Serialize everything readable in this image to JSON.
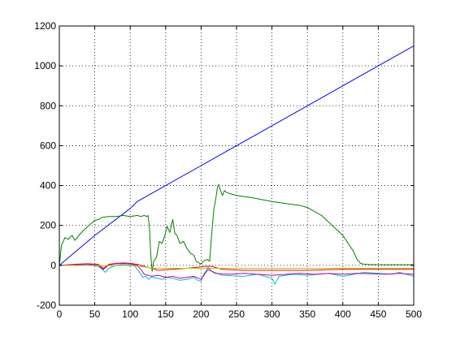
{
  "chart_data": {
    "type": "line",
    "title": "",
    "xlabel": "",
    "ylabel": "",
    "xlim": [
      0,
      500
    ],
    "ylim": [
      -200,
      1200
    ],
    "xticks": [
      0,
      50,
      100,
      150,
      200,
      250,
      300,
      350,
      400,
      450,
      500
    ],
    "yticks": [
      -200,
      0,
      200,
      400,
      600,
      800,
      1000,
      1200
    ],
    "xtick_labels": [
      "0",
      "50",
      "100",
      "150",
      "200",
      "250",
      "300",
      "350",
      "400",
      "450",
      "500"
    ],
    "ytick_labels": [
      "-200",
      "0",
      "200",
      "400",
      "600",
      "800",
      "1000",
      "1200"
    ],
    "grid": true,
    "legend": "none",
    "series": [
      {
        "color": "#0000ff",
        "x": [
          0,
          50,
          100,
          110,
          150,
          200,
          250,
          300,
          350,
          400,
          450,
          500
        ],
        "y": [
          0,
          150,
          285,
          320,
          400,
          500,
          600,
          700,
          800,
          900,
          1000,
          1100
        ]
      },
      {
        "color": "#008000",
        "x": [
          0,
          3,
          8,
          12,
          18,
          22,
          30,
          40,
          50,
          55,
          60,
          70,
          80,
          90,
          100,
          110,
          115,
          120,
          123,
          125,
          127,
          129,
          131,
          133,
          137,
          141,
          145,
          149,
          152,
          156,
          160,
          163,
          166,
          170,
          175,
          180,
          185,
          190,
          193,
          196,
          200,
          203,
          206,
          209,
          212,
          215,
          218,
          221,
          223,
          225,
          227,
          230,
          233,
          236,
          240,
          250,
          270,
          300,
          320,
          340,
          345,
          350,
          370,
          400,
          415,
          420,
          425,
          430,
          450,
          500
        ],
        "y": [
          0,
          100,
          140,
          130,
          150,
          125,
          160,
          195,
          225,
          230,
          240,
          245,
          245,
          250,
          245,
          250,
          245,
          250,
          245,
          250,
          200,
          50,
          -30,
          20,
          40,
          120,
          110,
          150,
          195,
          165,
          230,
          160,
          150,
          110,
          120,
          85,
          60,
          50,
          20,
          15,
          5,
          20,
          25,
          30,
          20,
          160,
          280,
          340,
          390,
          405,
          380,
          350,
          375,
          365,
          360,
          350,
          340,
          320,
          310,
          300,
          295,
          290,
          250,
          150,
          70,
          30,
          10,
          5,
          3,
          3
        ]
      },
      {
        "color": "#ff0000",
        "x": [
          0,
          20,
          40,
          55,
          62,
          70,
          80,
          90,
          100,
          110,
          120,
          125,
          140,
          160,
          180,
          195,
          205,
          215,
          230,
          260,
          300,
          350,
          400,
          450,
          500
        ],
        "y": [
          0,
          5,
          8,
          5,
          -15,
          5,
          10,
          12,
          10,
          5,
          -5,
          -10,
          -25,
          -20,
          -15,
          -10,
          -5,
          -5,
          -20,
          -25,
          -25,
          -25,
          -20,
          -20,
          -20
        ]
      },
      {
        "color": "#00bfbf",
        "x": [
          0,
          20,
          40,
          55,
          62,
          65,
          70,
          80,
          90,
          100,
          105,
          112,
          118,
          122,
          126,
          130,
          138,
          145,
          152,
          160,
          170,
          180,
          190,
          195,
          200,
          203,
          210,
          215,
          230,
          260,
          280,
          295,
          300,
          304,
          307,
          310,
          330,
          350,
          380,
          400,
          430,
          450,
          470,
          480,
          500
        ],
        "y": [
          0,
          2,
          5,
          -5,
          -25,
          -35,
          -15,
          0,
          5,
          3,
          2,
          -30,
          -60,
          -55,
          -70,
          -60,
          -65,
          -70,
          -60,
          -65,
          -75,
          -70,
          -60,
          -75,
          -80,
          -50,
          -10,
          -30,
          -50,
          -55,
          -45,
          -60,
          -65,
          -95,
          -75,
          -55,
          -45,
          -50,
          -40,
          -55,
          -35,
          -40,
          -45,
          -35,
          -55
        ]
      },
      {
        "color": "#bf00bf",
        "x": [
          0,
          20,
          40,
          55,
          62,
          70,
          80,
          90,
          100,
          110,
          115,
          120,
          130,
          140,
          150,
          160,
          170,
          180,
          190,
          200,
          205,
          210,
          215,
          220,
          240,
          260,
          280,
          300,
          320,
          340,
          360,
          380,
          400,
          420,
          440,
          460,
          480,
          500
        ],
        "y": [
          0,
          3,
          6,
          0,
          -20,
          2,
          8,
          10,
          8,
          0,
          -20,
          -45,
          -55,
          -50,
          -60,
          -55,
          -65,
          -60,
          -55,
          -70,
          -45,
          -20,
          -30,
          -40,
          -45,
          -40,
          -45,
          -50,
          -45,
          -40,
          -45,
          -40,
          -45,
          -40,
          -42,
          -45,
          -40,
          -45
        ]
      },
      {
        "color": "#bfbf00",
        "x": [
          0,
          100,
          120,
          130,
          200,
          250,
          300,
          400,
          500
        ],
        "y": [
          0,
          -2,
          -8,
          -15,
          -15,
          -15,
          -15,
          -15,
          -15
        ]
      }
    ]
  }
}
